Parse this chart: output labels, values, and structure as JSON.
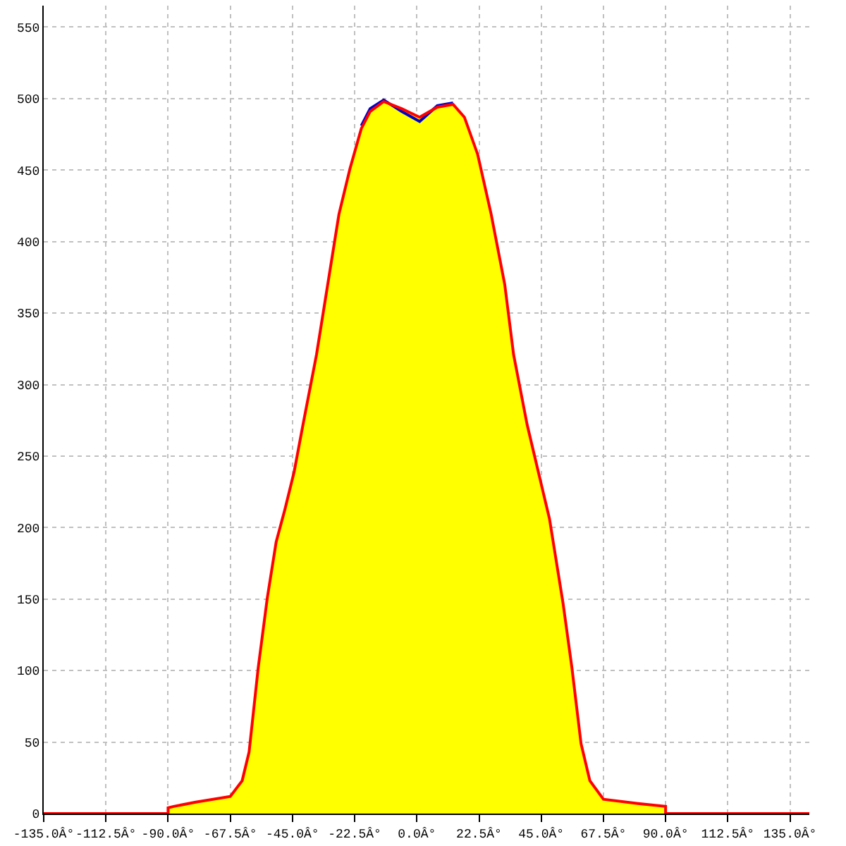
{
  "chart_data": {
    "type": "line",
    "x": [
      -90,
      -88,
      -80,
      -67.5,
      -63.2,
      -60.7,
      -57.4,
      -54.1,
      -50.9,
      -47.7,
      -44.4,
      -41.2,
      -36.3,
      -28.2,
      -24.2,
      -20.1,
      -16.9,
      -12.0,
      -5.5,
      1.0,
      7.4,
      13.1,
      17.2,
      22.0,
      26.9,
      31.8,
      35.0,
      39.9,
      48.0,
      52.9,
      56.1,
      59.4,
      62.6,
      67.5,
      80,
      90,
      90
    ],
    "series": [
      {
        "type": "area",
        "color": "#ffff00",
        "values": [
          4,
          5,
          8,
          12,
          23,
          43,
          102,
          151,
          190,
          213,
          239,
          272,
          321,
          419,
          451,
          479,
          491,
          498,
          493,
          487,
          494,
          496,
          487,
          461,
          419,
          370,
          321,
          272,
          206,
          147,
          102,
          49,
          23,
          10,
          7,
          5,
          0
        ]
      },
      {
        "color": "#0000cc",
        "values": [
          null,
          null,
          null,
          null,
          null,
          null,
          null,
          null,
          null,
          null,
          null,
          null,
          null,
          null,
          null,
          481,
          493,
          499,
          491,
          484,
          495,
          497,
          null,
          null,
          null,
          null,
          null,
          null,
          null,
          null,
          null,
          null,
          null,
          null,
          null,
          null,
          null
        ]
      },
      {
        "color": "#ff0000",
        "x": [
          -135,
          -90,
          -90,
          -88,
          -80,
          -67.5,
          -63.2,
          -60.7,
          -57.4,
          -54.1,
          -50.9,
          -47.7,
          -44.4,
          -41.2,
          -36.3,
          -28.2,
          -24.2,
          -20.1,
          -16.9,
          -12.0,
          -5.5,
          1.0,
          7.4,
          13.1,
          17.2,
          22.0,
          26.9,
          31.8,
          35.0,
          39.9,
          48.0,
          52.9,
          56.1,
          59.4,
          62.6,
          67.5,
          80,
          90,
          90,
          142
        ],
        "values": [
          0,
          0,
          4,
          5,
          8,
          12,
          23,
          43,
          102,
          151,
          190,
          213,
          239,
          272,
          321,
          419,
          451,
          479,
          491,
          498,
          493,
          487,
          494,
          496,
          487,
          461,
          419,
          370,
          321,
          272,
          206,
          147,
          102,
          49,
          23,
          10,
          7,
          5,
          0,
          0
        ]
      }
    ],
    "xlim": [
      -135,
      142
    ],
    "xticks": [
      {
        "value": -135,
        "label": "-135.0Â°"
      },
      {
        "value": -112.5,
        "label": "-112.5Â°"
      },
      {
        "value": -90,
        "label": "-90.0Â°"
      },
      {
        "value": -67.5,
        "label": "-67.5Â°"
      },
      {
        "value": -45,
        "label": "-45.0Â°"
      },
      {
        "value": -22.5,
        "label": "-22.5Â°"
      },
      {
        "value": 0,
        "label": "0.0Â°"
      },
      {
        "value": 22.5,
        "label": "22.5Â°"
      },
      {
        "value": 45,
        "label": "45.0Â°"
      },
      {
        "value": 67.5,
        "label": "67.5Â°"
      },
      {
        "value": 90,
        "label": "90.0Â°"
      },
      {
        "value": 112.5,
        "label": "112.5Â°"
      },
      {
        "value": 135,
        "label": "135.0Â°"
      }
    ],
    "ylim": [
      0,
      565
    ],
    "yticks": [
      0,
      50,
      100,
      150,
      200,
      250,
      300,
      350,
      400,
      450,
      500,
      550
    ],
    "grid": true,
    "marker": "none",
    "line_style": "solid"
  }
}
